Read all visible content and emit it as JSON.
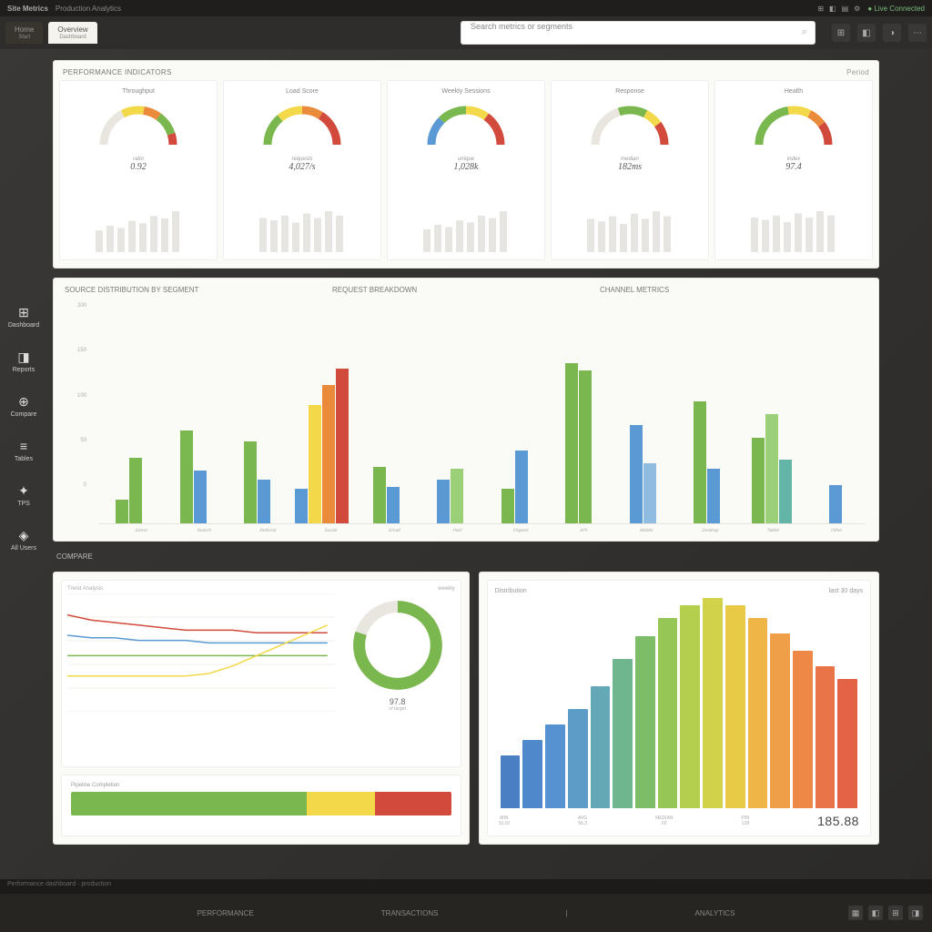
{
  "topbar": {
    "brand": "Site Metrics",
    "subtitle": "Production Analytics",
    "status": "● Live Connected",
    "icons": [
      "⊞",
      "◧",
      "▤",
      "⚙"
    ]
  },
  "tabs": [
    {
      "label": "Home",
      "sub": "Start"
    },
    {
      "label": "Overview",
      "sub": "Dashboard"
    }
  ],
  "search": {
    "placeholder": "Search metrics or segments"
  },
  "header_icons": [
    "⊞",
    "◧",
    "◑",
    "⋯"
  ],
  "sidebar": [
    {
      "icon": "⊞",
      "label": "Dashboard"
    },
    {
      "icon": "◨",
      "label": "Reports"
    },
    {
      "icon": "⊕",
      "label": "Compare"
    },
    {
      "icon": "≡",
      "label": "Tables"
    },
    {
      "icon": "✦",
      "label": "TPS"
    },
    {
      "icon": "◈",
      "label": "All Users"
    }
  ],
  "kpi_section": {
    "title": "PERFORMANCE INDICATORS",
    "right_label": "Period",
    "cards": [
      {
        "title": "Throughput",
        "value": "0.92",
        "sublabel": "ratio",
        "segments": [
          {
            "c": "#e9e6df",
            "p": 35
          },
          {
            "c": "#f3d94a",
            "p": 20
          },
          {
            "c": "#e98b3a",
            "p": 15
          },
          {
            "c": "#7ab84f",
            "p": 20
          },
          {
            "c": "#d24a3c",
            "p": 10
          }
        ],
        "spark": [
          18,
          22,
          20,
          26,
          24,
          30,
          28,
          34
        ]
      },
      {
        "title": "Load Score",
        "value": "4,027/s",
        "sublabel": "requests",
        "segments": [
          {
            "c": "#7ab84f",
            "p": 28
          },
          {
            "c": "#f3d94a",
            "p": 22
          },
          {
            "c": "#e98b3a",
            "p": 18
          },
          {
            "c": "#d24a3c",
            "p": 32
          }
        ],
        "spark": [
          30,
          28,
          32,
          26,
          34,
          30,
          36,
          32
        ]
      },
      {
        "title": "Weekly Sessions",
        "value": "1,028k",
        "sublabel": "unique",
        "segments": [
          {
            "c": "#5a99d4",
            "p": 25
          },
          {
            "c": "#7ab84f",
            "p": 25
          },
          {
            "c": "#f3d94a",
            "p": 20
          },
          {
            "c": "#d24a3c",
            "p": 30
          }
        ],
        "spark": [
          20,
          24,
          22,
          28,
          26,
          32,
          30,
          36
        ]
      },
      {
        "title": "Response",
        "value": "182ms",
        "sublabel": "median",
        "segments": [
          {
            "c": "#e9e6df",
            "p": 40
          },
          {
            "c": "#7ab84f",
            "p": 25
          },
          {
            "c": "#f3d94a",
            "p": 15
          },
          {
            "c": "#d24a3c",
            "p": 20
          }
        ],
        "spark": [
          26,
          24,
          28,
          22,
          30,
          26,
          32,
          28
        ]
      },
      {
        "title": "Health",
        "value": "97.4",
        "sublabel": "index",
        "segments": [
          {
            "c": "#7ab84f",
            "p": 45
          },
          {
            "c": "#f3d94a",
            "p": 20
          },
          {
            "c": "#e98b3a",
            "p": 15
          },
          {
            "c": "#d24a3c",
            "p": 20
          }
        ],
        "spark": [
          32,
          30,
          34,
          28,
          36,
          32,
          38,
          34
        ]
      }
    ]
  },
  "bar_section": {
    "titles": [
      "SOURCE DISTRIBUTION BY SEGMENT",
      "REQUEST BREAKDOWN",
      "CHANNEL METRICS"
    ],
    "ylim": [
      0,
      200
    ],
    "yticks": [
      "200",
      "150",
      "100",
      "50",
      "0"
    ],
    "colors": {
      "green": "#7ab84f",
      "blue": "#5a99d4",
      "yellow": "#f3d94a",
      "orange": "#e98b3a",
      "red": "#d24a3c",
      "teal": "#63b5a8",
      "ltgreen": "#9bcf78",
      "ltblue": "#8fbce0"
    },
    "groups": [
      {
        "label": "Direct",
        "bars": [
          {
            "h": 26,
            "c": "green"
          },
          {
            "h": 72,
            "c": "green"
          }
        ]
      },
      {
        "label": "Search",
        "bars": [
          {
            "h": 102,
            "c": "green"
          },
          {
            "h": 58,
            "c": "blue"
          }
        ]
      },
      {
        "label": "Referral",
        "bars": [
          {
            "h": 90,
            "c": "green"
          },
          {
            "h": 48,
            "c": "blue"
          }
        ]
      },
      {
        "label": "Social",
        "bars": [
          {
            "h": 38,
            "c": "blue"
          },
          {
            "h": 130,
            "c": "yellow"
          },
          {
            "h": 152,
            "c": "orange"
          },
          {
            "h": 170,
            "c": "red"
          }
        ]
      },
      {
        "label": "Email",
        "bars": [
          {
            "h": 62,
            "c": "green"
          },
          {
            "h": 40,
            "c": "blue"
          }
        ]
      },
      {
        "label": "Paid",
        "bars": [
          {
            "h": 48,
            "c": "blue"
          },
          {
            "h": 60,
            "c": "ltgreen"
          }
        ]
      },
      {
        "label": "Organic",
        "bars": [
          {
            "h": 38,
            "c": "green"
          },
          {
            "h": 80,
            "c": "blue"
          }
        ]
      },
      {
        "label": "API",
        "bars": [
          {
            "h": 176,
            "c": "green"
          },
          {
            "h": 168,
            "c": "green"
          }
        ]
      },
      {
        "label": "Mobile",
        "bars": [
          {
            "h": 108,
            "c": "blue"
          },
          {
            "h": 66,
            "c": "ltblue"
          }
        ]
      },
      {
        "label": "Desktop",
        "bars": [
          {
            "h": 134,
            "c": "green"
          },
          {
            "h": 60,
            "c": "blue"
          }
        ]
      },
      {
        "label": "Tablet",
        "bars": [
          {
            "h": 94,
            "c": "green"
          },
          {
            "h": 120,
            "c": "ltgreen"
          },
          {
            "h": 70,
            "c": "teal"
          }
        ]
      },
      {
        "label": "Other",
        "bars": [
          {
            "h": 42,
            "c": "blue"
          }
        ]
      }
    ]
  },
  "bottom": {
    "section_title": "COMPARE",
    "line": {
      "title": "Trend Analysis",
      "sub": "weekly",
      "series": [
        {
          "c": "#d24a3c",
          "pts": [
            38,
            36,
            35,
            34,
            33,
            32,
            32,
            32,
            31,
            31,
            31,
            31
          ]
        },
        {
          "c": "#5a99d4",
          "pts": [
            30,
            29,
            29,
            28,
            28,
            28,
            27,
            27,
            27,
            27,
            27,
            27
          ]
        },
        {
          "c": "#7ab84f",
          "pts": [
            22,
            22,
            22,
            22,
            22,
            22,
            22,
            22,
            22,
            22,
            22,
            22
          ]
        },
        {
          "c": "#f3d94a",
          "pts": [
            14,
            14,
            14,
            14,
            14,
            14,
            15,
            18,
            22,
            26,
            30,
            34
          ]
        }
      ],
      "gauge_val": "97.8",
      "gauge_sub": "of target",
      "donut_colors": [
        "#e9e6df",
        "#7ab84f"
      ]
    },
    "progress": {
      "title": "Pipeline Completion",
      "segments": [
        {
          "c": "#7ab84f",
          "w": 62
        },
        {
          "c": "#f3d94a",
          "w": 18
        },
        {
          "c": "#d24a3c",
          "w": 20
        }
      ]
    },
    "spectrum": {
      "title": "Distribution",
      "right": "last 30 days",
      "colors": [
        "#4a7fc4",
        "#4f88cb",
        "#5691d1",
        "#5e9cc8",
        "#64a8b8",
        "#6fb58e",
        "#7ebd68",
        "#96c655",
        "#b4ce4d",
        "#d2d24a",
        "#e8ca47",
        "#efb647",
        "#ef9f47",
        "#ee8847",
        "#e87447",
        "#e46347"
      ],
      "heights": [
        42,
        54,
        66,
        78,
        96,
        118,
        136,
        150,
        160,
        166,
        160,
        150,
        138,
        124,
        112,
        102
      ],
      "footer": [
        {
          "t": "MIN",
          "v": "10.02"
        },
        {
          "t": "AVG",
          "v": "56.3"
        },
        {
          "t": "MEDIAN",
          "v": "60"
        },
        {
          "t": "P95",
          "v": "128"
        }
      ],
      "big": "185.88"
    }
  },
  "bottombar": {
    "items": [
      "PERFORMANCE",
      "TRANSACTIONS",
      "|",
      "ANALYTICS"
    ],
    "icons": [
      "▦",
      "◧",
      "⊞",
      "◨"
    ]
  },
  "status_line": "Performance dashboard · production"
}
